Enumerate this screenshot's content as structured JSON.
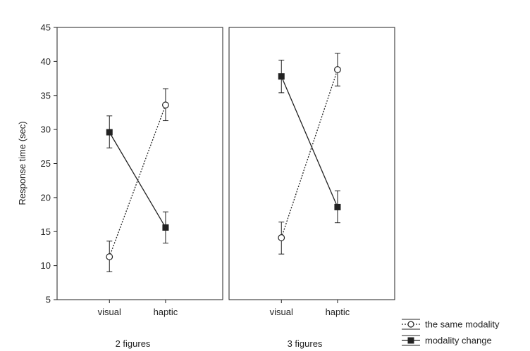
{
  "chart_data": {
    "type": "line",
    "ylabel": "Response time (sec)",
    "xlabel": "",
    "ylim": [
      5,
      45
    ],
    "yticks": [
      5,
      10,
      15,
      20,
      25,
      30,
      35,
      40,
      45
    ],
    "categories": [
      "visual",
      "haptic"
    ],
    "grid": false,
    "legend_position": "bottom-right",
    "legend": [
      {
        "name": "the same modality",
        "line": "dotted",
        "marker": "open-circle"
      },
      {
        "name": "modality change",
        "line": "solid",
        "marker": "filled-square"
      }
    ],
    "panels": [
      {
        "label": "2 figures",
        "series": [
          {
            "name": "the same modality",
            "values": [
              11.3,
              33.6
            ],
            "err_low": [
              9.1,
              31.3
            ],
            "err_high": [
              13.6,
              36.0
            ]
          },
          {
            "name": "modality change",
            "values": [
              29.6,
              15.6
            ],
            "err_low": [
              27.3,
              13.3
            ],
            "err_high": [
              32.0,
              17.9
            ]
          }
        ]
      },
      {
        "label": "3 figures",
        "series": [
          {
            "name": "the same modality",
            "values": [
              14.1,
              38.8
            ],
            "err_low": [
              11.7,
              36.4
            ],
            "err_high": [
              16.4,
              41.2
            ]
          },
          {
            "name": "modality change",
            "values": [
              37.8,
              18.6
            ],
            "err_low": [
              35.4,
              16.3
            ],
            "err_high": [
              40.2,
              21.0
            ]
          }
        ]
      }
    ]
  },
  "colors": {
    "axis": "#222222",
    "line": "#222222",
    "background": "#ffffff"
  }
}
